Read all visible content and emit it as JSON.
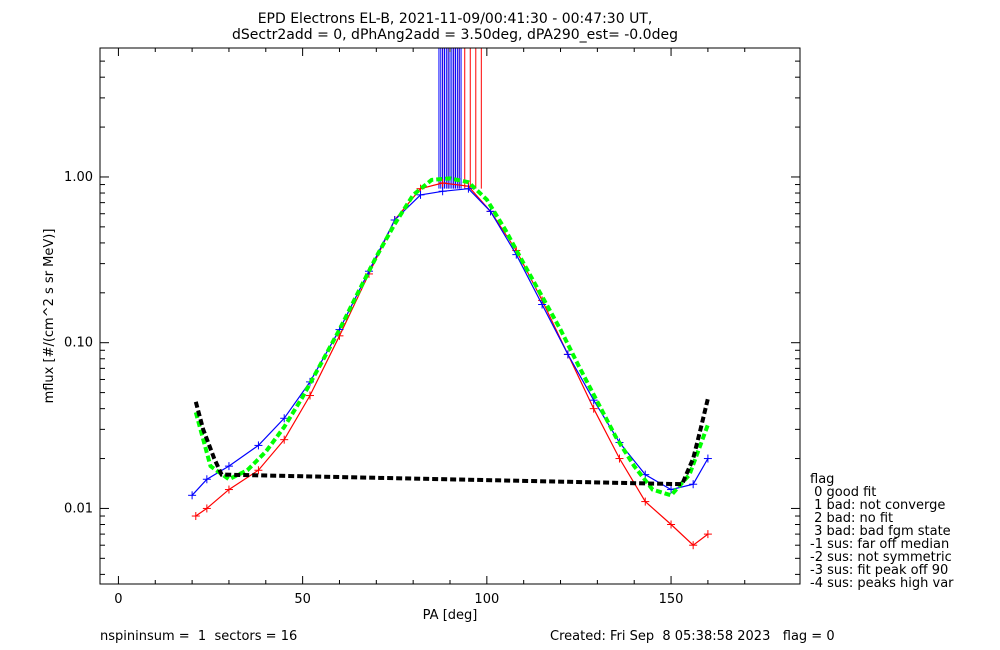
{
  "chart_data": {
    "type": "scatter",
    "title": "EPD Electrons EL-B, 2021-11-09/00:41:30 - 00:47:30 UT,",
    "subtitle": "dSectr2add = 0, dPhAng2add = 3.50deg, dPA290_est=  -0.0deg",
    "xlabel": "PA [deg]",
    "ylabel": "mflux [#/(cm^2 s sr MeV)]",
    "xlim": [
      -5,
      185
    ],
    "ylim": [
      0.0035,
      6.0
    ],
    "yscale": "log",
    "xticks": [
      0,
      50,
      100,
      150
    ],
    "yticks": [
      0.01,
      0.1,
      1.0
    ],
    "ytick_labels": [
      "0.01",
      "0.10",
      "1.00"
    ],
    "grid": false,
    "series": [
      {
        "color": "#ff0000",
        "marker": "+",
        "x": [
          21,
          24,
          30,
          38,
          45,
          52,
          60,
          68,
          75,
          82,
          88,
          95,
          101,
          108,
          115,
          122,
          129,
          136,
          143,
          150,
          156,
          160
        ],
        "y": [
          0.009,
          0.01,
          0.013,
          0.017,
          0.026,
          0.048,
          0.11,
          0.26,
          0.55,
          0.85,
          0.92,
          0.88,
          0.62,
          0.36,
          0.18,
          0.085,
          0.04,
          0.02,
          0.011,
          0.008,
          0.006,
          0.007
        ]
      },
      {
        "color": "#0000ff",
        "marker": "+",
        "x": [
          20,
          24,
          30,
          38,
          45,
          52,
          60,
          68,
          75,
          82,
          88,
          95,
          101,
          108,
          115,
          122,
          129,
          136,
          143,
          150,
          156,
          160
        ],
        "y": [
          0.012,
          0.015,
          0.018,
          0.024,
          0.035,
          0.058,
          0.12,
          0.27,
          0.55,
          0.78,
          0.82,
          0.85,
          0.62,
          0.34,
          0.17,
          0.085,
          0.045,
          0.025,
          0.016,
          0.013,
          0.014,
          0.02
        ]
      },
      {
        "color": "#00ff00",
        "style": "dashed",
        "x": [
          21,
          25,
          30,
          35,
          40,
          45,
          50,
          55,
          60,
          65,
          70,
          75,
          80,
          85,
          90,
          95,
          100,
          105,
          110,
          115,
          120,
          125,
          130,
          135,
          140,
          145,
          150,
          155,
          160
        ],
        "y": [
          0.038,
          0.018,
          0.015,
          0.017,
          0.022,
          0.031,
          0.047,
          0.075,
          0.12,
          0.2,
          0.33,
          0.52,
          0.78,
          0.96,
          0.98,
          0.93,
          0.73,
          0.48,
          0.3,
          0.19,
          0.12,
          0.072,
          0.044,
          0.027,
          0.018,
          0.013,
          0.012,
          0.016,
          0.032
        ]
      },
      {
        "color": "#000000",
        "style": "dashed",
        "x": [
          21,
          23,
          26,
          28,
          153,
          156,
          158,
          160
        ],
        "y": [
          0.044,
          0.03,
          0.02,
          0.016,
          0.014,
          0.02,
          0.03,
          0.046
        ]
      }
    ],
    "vertical_lines": [
      {
        "color": "#ff0000",
        "x": [
          88,
          89.5,
          91,
          92.5,
          94,
          95.5,
          97,
          98.5
        ]
      },
      {
        "color": "#0000ff",
        "x": [
          87,
          87.5,
          88,
          88.5,
          89,
          89.5,
          90,
          90.5,
          91,
          91.5,
          92,
          92.5,
          93
        ]
      }
    ],
    "legend": {
      "placement": "right",
      "title": "flag",
      "entries": [
        " 0 good fit",
        " 1 bad: not converge",
        " 2 bad: no fit",
        " 3 bad: bad fgm state",
        "-1 sus: far off median",
        "-2 sus: not symmetric",
        "-3 sus: fit peak off 90",
        "-4 sus: peaks high var"
      ]
    }
  },
  "footer": {
    "left": "nspininsum =  1  sectors = 16",
    "right": "Created: Fri Sep  8 05:38:58 2023   flag = 0"
  }
}
